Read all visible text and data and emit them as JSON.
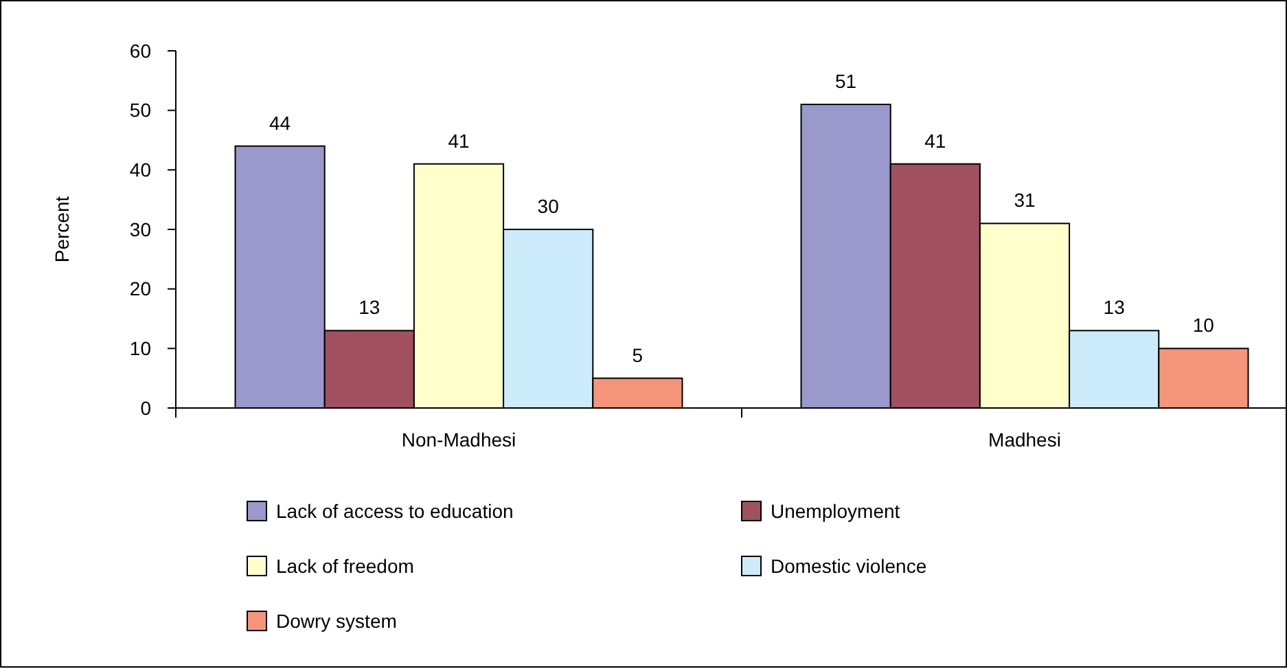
{
  "chart_data": {
    "type": "bar",
    "ylabel": "Percent",
    "categories": [
      "Non-Madhesi",
      "Madhesi"
    ],
    "series": [
      {
        "name": "Lack of access to education",
        "color": "#9999cc",
        "values": [
          44,
          51
        ]
      },
      {
        "name": "Unemployment",
        "color": "#a0505e",
        "values": [
          13,
          41
        ]
      },
      {
        "name": "Lack of freedom",
        "color": "#ffffcc",
        "values": [
          41,
          31
        ]
      },
      {
        "name": "Domestic violence",
        "color": "#ccecfb",
        "values": [
          30,
          13
        ]
      },
      {
        "name": "Dowry system",
        "color": "#f4957a",
        "values": [
          5,
          10
        ]
      }
    ],
    "ylim": [
      0,
      60
    ],
    "yticks": [
      0,
      10,
      20,
      30,
      40,
      50,
      60
    ],
    "data_labels": true,
    "legend": "bottom",
    "grid": false
  }
}
